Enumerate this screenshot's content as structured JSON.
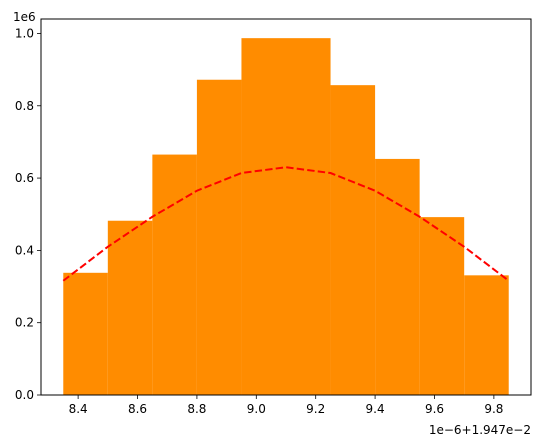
{
  "chart_data": {
    "type": "bar",
    "title": "",
    "xlabel": "",
    "ylabel": "",
    "y_scale_label": "1e6",
    "x_offset_label": "1e−6+1.947e−2",
    "xlim": [
      8.275,
      9.925
    ],
    "ylim": [
      0,
      1.04
    ],
    "x_ticks": [
      8.4,
      8.6,
      8.8,
      9.0,
      9.2,
      9.4,
      9.6,
      9.8
    ],
    "x_tick_labels": [
      "8.4",
      "8.6",
      "8.8",
      "9.0",
      "9.2",
      "9.4",
      "9.6",
      "9.8"
    ],
    "y_ticks": [
      0.0,
      0.2,
      0.4,
      0.6,
      0.8,
      1.0
    ],
    "y_tick_labels": [
      "0.0",
      "0.2",
      "0.4",
      "0.6",
      "0.8",
      "1.0"
    ],
    "grid": false,
    "bar_color": "#ff8c00",
    "bins": [
      {
        "x0": 8.35,
        "x1": 8.5,
        "value": 0.338
      },
      {
        "x0": 8.5,
        "x1": 8.65,
        "value": 0.482
      },
      {
        "x0": 8.65,
        "x1": 8.8,
        "value": 0.665
      },
      {
        "x0": 8.8,
        "x1": 8.95,
        "value": 0.872
      },
      {
        "x0": 8.95,
        "x1": 9.1,
        "value": 0.987
      },
      {
        "x0": 9.1,
        "x1": 9.25,
        "value": 0.987
      },
      {
        "x0": 9.25,
        "x1": 9.4,
        "value": 0.857
      },
      {
        "x0": 9.4,
        "x1": 9.55,
        "value": 0.653
      },
      {
        "x0": 9.55,
        "x1": 9.7,
        "value": 0.492
      },
      {
        "x0": 9.7,
        "x1": 9.85,
        "value": 0.331
      }
    ],
    "series": [
      {
        "type": "line",
        "style": "dashed",
        "color": "#ff0000",
        "x": [
          8.35,
          8.5,
          8.65,
          8.8,
          8.95,
          9.1,
          9.25,
          9.4,
          9.55,
          9.7,
          9.85
        ],
        "values": [
          0.316,
          0.41,
          0.493,
          0.565,
          0.614,
          0.63,
          0.614,
          0.565,
          0.493,
          0.41,
          0.316
        ]
      }
    ]
  }
}
